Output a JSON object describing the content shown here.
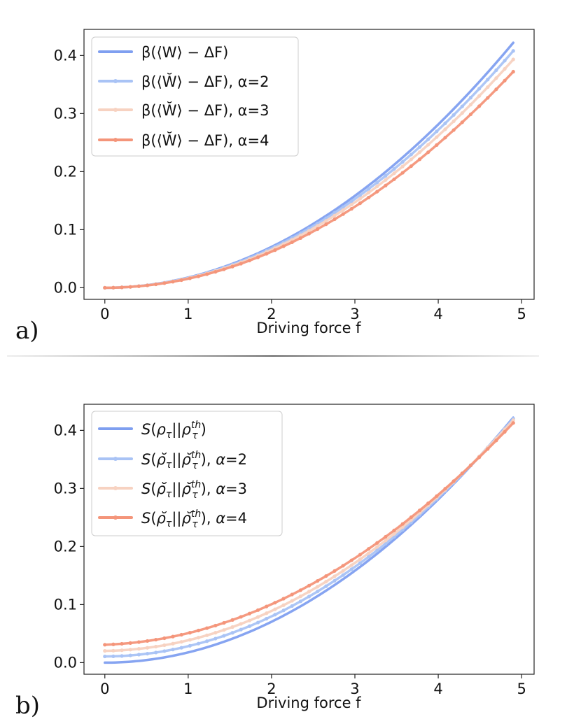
{
  "colors": {
    "series_0": "#7f9ff0",
    "series_1": "#a9c3f5",
    "series_2": "#f7d2c1",
    "series_3": "#f4957a"
  },
  "chart_data": [
    {
      "type": "line",
      "panel_label": "a)",
      "xlabel": "Driving force f",
      "ylabel": "",
      "xlim": [
        -0.25,
        5.15
      ],
      "ylim": [
        -0.02,
        0.445
      ],
      "xticks": [
        0,
        1,
        2,
        3,
        4,
        5
      ],
      "yticks": [
        0.0,
        0.1,
        0.2,
        0.3,
        0.4
      ],
      "xtick_labels": [
        "0",
        "1",
        "2",
        "3",
        "4",
        "5"
      ],
      "ytick_labels": [
        "0.0",
        "0.1",
        "0.2",
        "0.3",
        "0.4"
      ],
      "grid": false,
      "legend_position": "upper-left",
      "series": [
        {
          "name": "β(⟨W⟩ − ΔF)",
          "color": "#7f9ff0",
          "markers": false,
          "x": [
            0,
            0.5,
            1,
            1.5,
            2,
            2.5,
            3,
            3.5,
            4,
            4.5,
            4.9
          ],
          "y": [
            0,
            0.0044,
            0.0176,
            0.0396,
            0.0704,
            0.11,
            0.158,
            0.216,
            0.281,
            0.356,
            0.422
          ]
        },
        {
          "name": "β(⟨W̆⟩ − ΔF), α=2",
          "color": "#a9c3f5",
          "markers": true,
          "x": [
            0,
            0.5,
            1,
            1.5,
            2,
            2.5,
            3,
            3.5,
            4,
            4.5,
            4.9
          ],
          "y": [
            0,
            0.0043,
            0.017,
            0.0383,
            0.068,
            0.106,
            0.153,
            0.208,
            0.272,
            0.344,
            0.408
          ]
        },
        {
          "name": "β(⟨W̆⟩ − ΔF), α=3",
          "color": "#f7d2c1",
          "markers": true,
          "x": [
            0,
            0.5,
            1,
            1.5,
            2,
            2.5,
            3,
            3.5,
            4,
            4.5,
            4.9
          ],
          "y": [
            0,
            0.0041,
            0.0164,
            0.0369,
            0.0656,
            0.102,
            0.147,
            0.2,
            0.262,
            0.332,
            0.393
          ]
        },
        {
          "name": "β(⟨W̆⟩ − ΔF), α=4",
          "color": "#f4957a",
          "markers": true,
          "x": [
            0,
            0.5,
            1,
            1.5,
            2,
            2.5,
            3,
            3.5,
            4,
            4.5,
            4.9
          ],
          "y": [
            0,
            0.0039,
            0.0155,
            0.0349,
            0.062,
            0.0969,
            0.14,
            0.19,
            0.248,
            0.314,
            0.372
          ]
        }
      ]
    },
    {
      "type": "line",
      "panel_label": "b)",
      "xlabel": "Driving force f",
      "ylabel": "",
      "xlim": [
        -0.25,
        5.15
      ],
      "ylim": [
        -0.02,
        0.445
      ],
      "xticks": [
        0,
        1,
        2,
        3,
        4,
        5
      ],
      "yticks": [
        0.0,
        0.1,
        0.2,
        0.3,
        0.4
      ],
      "xtick_labels": [
        "0",
        "1",
        "2",
        "3",
        "4",
        "5"
      ],
      "ytick_labels": [
        "0.0",
        "0.1",
        "0.2",
        "0.3",
        "0.4"
      ],
      "grid": false,
      "legend_position": "upper-left",
      "series": [
        {
          "name": "S(ρτ||ρτth)",
          "color": "#7f9ff0",
          "markers": false,
          "x": [
            0,
            0.5,
            1,
            1.5,
            2,
            2.5,
            3,
            3.5,
            4,
            4.5,
            4.9
          ],
          "y": [
            0,
            0.0044,
            0.0176,
            0.0396,
            0.0704,
            0.11,
            0.158,
            0.216,
            0.281,
            0.356,
            0.422
          ]
        },
        {
          "name": "S(ρ̆τ||ρ̆τth), α=2",
          "color": "#a9c3f5",
          "markers": true,
          "x": [
            0,
            0.5,
            1,
            1.5,
            2,
            2.5,
            3,
            3.5,
            4,
            4.5,
            4.9
          ],
          "y": [
            0.011,
            0.0153,
            0.0281,
            0.0494,
            0.0793,
            0.118,
            0.165,
            0.221,
            0.284,
            0.357,
            0.419
          ]
        },
        {
          "name": "S(ρ̆τ||ρ̆τth), α=3",
          "color": "#f7d2c1",
          "markers": true,
          "x": [
            0,
            0.5,
            1,
            1.5,
            2,
            2.5,
            3,
            3.5,
            4,
            4.5,
            4.9
          ],
          "y": [
            0.021,
            0.0253,
            0.038,
            0.059,
            0.0885,
            0.126,
            0.172,
            0.226,
            0.288,
            0.357,
            0.416
          ]
        },
        {
          "name": "S(ρ̆τ||ρ̆τth), α=4",
          "color": "#f4957a",
          "markers": true,
          "x": [
            0,
            0.5,
            1,
            1.5,
            2,
            2.5,
            3,
            3.5,
            4,
            4.5,
            4.9
          ],
          "y": [
            0.033,
            0.0371,
            0.0495,
            0.07,
            0.0988,
            0.136,
            0.18,
            0.233,
            0.292,
            0.359,
            0.407
          ]
        }
      ]
    }
  ]
}
